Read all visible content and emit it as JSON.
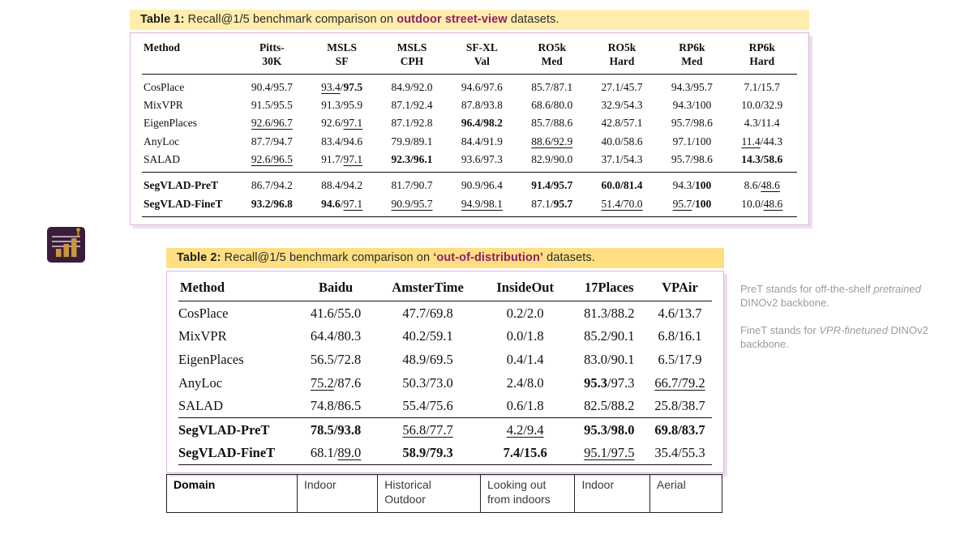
{
  "colors": {
    "table1_highlight": "#FFEDAD",
    "table2_highlight": "#FFDF82",
    "emphasis_purple": "#8C2168",
    "card_border": "#DCB6DC",
    "card_shadow": "#F0DCEF",
    "note_gray": "#9C9C9C",
    "icon_bg": "#3A1C3B",
    "icon_bar": "#C9953F"
  },
  "icon": {
    "name": "bar-chart-icon"
  },
  "table1": {
    "title": {
      "label": "Table 1:",
      "pre": " Recall@1/5 benchmark comparison on ",
      "em": "outdoor street-view",
      "post": " datasets."
    },
    "columns": [
      [
        "Method",
        ""
      ],
      [
        "Pitts-",
        "30K"
      ],
      [
        "MSLS",
        "SF"
      ],
      [
        "MSLS",
        "CPH"
      ],
      [
        "SF-XL",
        "Val"
      ],
      [
        "RO5k",
        "Med"
      ],
      [
        "RO5k",
        "Hard"
      ],
      [
        "RP6k",
        "Med"
      ],
      [
        "RP6k",
        "Hard"
      ]
    ],
    "groups": [
      {
        "rows": [
          {
            "method": "CosPlace",
            "bold": false,
            "cells": [
              "90.4/95.7",
              "_93.4_/*97.5*",
              "84.9/92.0",
              "94.6/97.6",
              "85.7/87.1",
              "27.1/45.7",
              "94.3/95.7",
              "7.1/15.7"
            ]
          },
          {
            "method": "MixVPR",
            "bold": false,
            "cells": [
              "91.5/95.5",
              "91.3/95.9",
              "87.1/92.4",
              "87.8/93.8",
              "68.6/80.0",
              "32.9/54.3",
              "94.3/100",
              "10.0/32.9"
            ]
          },
          {
            "method": "EigenPlaces",
            "bold": false,
            "cells": [
              "_92.6/96.7_",
              "92.6/_97.1_",
              "87.1/92.8",
              "*96.4/98.2*",
              "85.7/88.6",
              "42.8/57.1",
              "95.7/98.6",
              "4.3/11.4"
            ]
          },
          {
            "method": "AnyLoc",
            "bold": false,
            "cells": [
              "87.7/94.7",
              "83.4/94.6",
              "79.9/89.1",
              "84.4/91.9",
              "_88.6/92.9_",
              "40.0/58.6",
              "97.1/100",
              "_11.4_/44.3"
            ]
          },
          {
            "method": "SALAD",
            "bold": false,
            "cells": [
              "_92.6/96.5_",
              "91.7/_97.1_",
              "*92.3/96.1*",
              "93.6/97.3",
              "82.9/90.0",
              "37.1/54.3",
              "95.7/98.6",
              "*14.3/58.6*"
            ]
          }
        ]
      },
      {
        "rows": [
          {
            "method": "SegVLAD-PreT",
            "bold": true,
            "cells": [
              "86.7/94.2",
              "88.4/94.2",
              "81.7/90.7",
              "90.9/96.4",
              "*91.4/95.7*",
              "*60.0/81.4*",
              "94.3/*100*",
              "8.6/_48.6_"
            ]
          },
          {
            "method": "SegVLAD-FineT",
            "bold": true,
            "cells": [
              "*93.2/96.8*",
              "*94.6*/_97.1_",
              "_90.9/95.7_",
              "_94.9/98.1_",
              "87.1/*95.7*",
              "_51.4/70.0_",
              "_95.7_/*100*",
              "10.0/_48.6_"
            ]
          }
        ]
      }
    ]
  },
  "table2": {
    "title": {
      "label": "Table 2:",
      "pre": " Recall@1/5 benchmark comparison on ",
      "em": "‘out-of-distribution’",
      "post": " datasets."
    },
    "columns": [
      [
        "Method",
        ""
      ],
      [
        "Baidu",
        ""
      ],
      [
        "AmsterTime",
        ""
      ],
      [
        "InsideOut",
        ""
      ],
      [
        "17Places",
        ""
      ],
      [
        "VPAir",
        ""
      ]
    ],
    "groups": [
      {
        "rows": [
          {
            "method": "CosPlace",
            "bold": false,
            "cells": [
              "41.6/55.0",
              "47.7/69.8",
              "0.2/2.0",
              "81.3/88.2",
              "4.6/13.7"
            ]
          },
          {
            "method": "MixVPR",
            "bold": false,
            "cells": [
              "64.4/80.3",
              "40.2/59.1",
              "0.0/1.8",
              "85.2/90.1",
              "6.8/16.1"
            ]
          },
          {
            "method": "EigenPlaces",
            "bold": false,
            "cells": [
              "56.5/72.8",
              "48.9/69.5",
              "0.4/1.4",
              "83.0/90.1",
              "6.5/17.9"
            ]
          },
          {
            "method": "AnyLoc",
            "bold": false,
            "cells": [
              "_75.2_/87.6",
              "50.3/73.0",
              "2.4/8.0",
              "*95.3*/97.3",
              "_66.7/79.2_"
            ]
          },
          {
            "method": "SALAD",
            "bold": false,
            "cells": [
              "74.8/86.5",
              "55.4/75.6",
              "0.6/1.8",
              "82.5/88.2",
              "25.8/38.7"
            ]
          }
        ]
      },
      {
        "rows": [
          {
            "method": "SegVLAD-PreT",
            "bold": true,
            "cells": [
              "*78.5/93.8*",
              "_56.8/77.7_",
              "_4.2/9.4_",
              "*95.3/98.0*",
              "*69.8/83.7*"
            ]
          },
          {
            "method": "SegVLAD-FineT",
            "bold": true,
            "cells": [
              "68.1/_89.0_",
              "*58.9/79.3*",
              "*7.4/15.6*",
              "_95.1/97.5_",
              "35.4/55.3"
            ]
          }
        ]
      }
    ]
  },
  "domain_table": {
    "header": "Domain",
    "cells": [
      "Indoor",
      "Historical Outdoor",
      "Looking out from indoors",
      "Indoor",
      "Aerial"
    ]
  },
  "notes": [
    {
      "pre": "PreT stands for off-the-shelf ",
      "em": "pretrained",
      "post": " DINOv2 backbone."
    },
    {
      "pre": "FineT stands for ",
      "em": "VPR-finetuned",
      "post": " DINOv2 backbone."
    }
  ]
}
